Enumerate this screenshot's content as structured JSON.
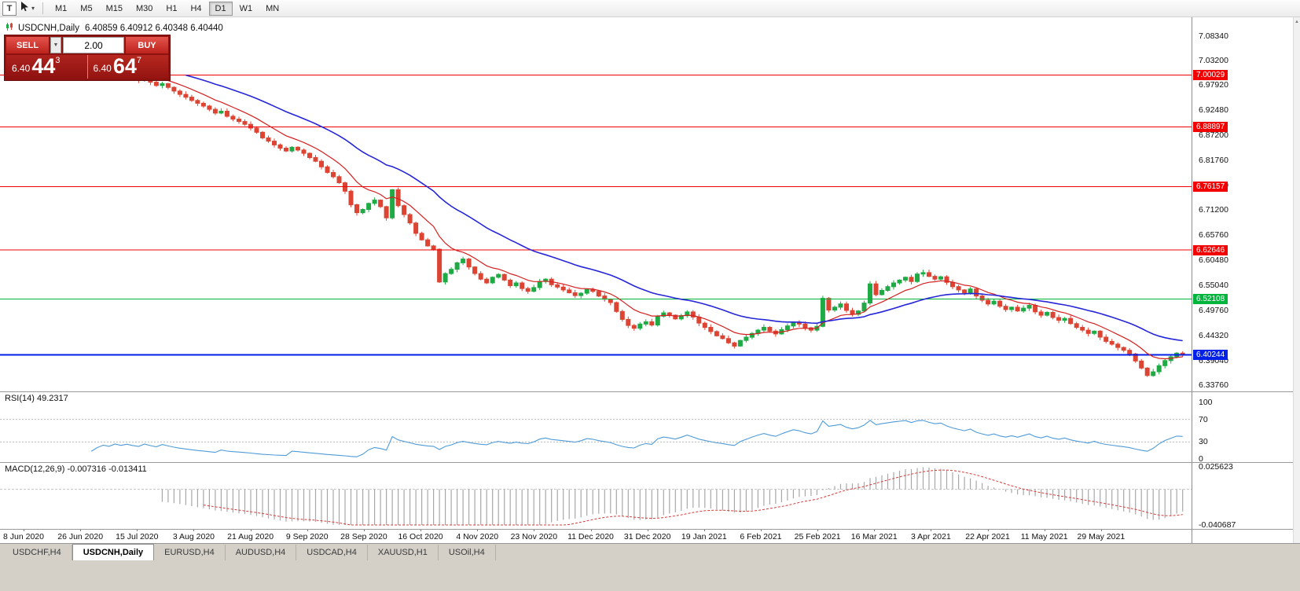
{
  "toolbar": {
    "text_tool": "T",
    "timeframes": [
      {
        "label": "M1",
        "active": false
      },
      {
        "label": "M5",
        "active": false
      },
      {
        "label": "M15",
        "active": false
      },
      {
        "label": "M30",
        "active": false
      },
      {
        "label": "H1",
        "active": false
      },
      {
        "label": "H4",
        "active": false
      },
      {
        "label": "D1",
        "active": true
      },
      {
        "label": "W1",
        "active": false
      },
      {
        "label": "MN",
        "active": false
      }
    ]
  },
  "chart_header": {
    "symbol": "USDCNH,Daily",
    "ohlc": "6.40859 6.40912 6.40348 6.40440"
  },
  "trade_panel": {
    "sell_label": "SELL",
    "buy_label": "BUY",
    "volume": "2.00",
    "sell_price": {
      "prefix": "6.40",
      "big": "44",
      "sup": "3"
    },
    "buy_price": {
      "prefix": "6.40",
      "big": "64",
      "sup": "7"
    }
  },
  "indicators": {
    "rsi_label": "RSI(14) 49.2317",
    "macd_label": "MACD(12,26,9) -0.007316 -0.013411"
  },
  "tabs": [
    {
      "label": "USDCHF,H4",
      "active": false
    },
    {
      "label": "USDCNH,Daily",
      "active": true
    },
    {
      "label": "EURUSD,H4",
      "active": false
    },
    {
      "label": "AUDUSD,H4",
      "active": false
    },
    {
      "label": "USDCAD,H4",
      "active": false
    },
    {
      "label": "XAUUSD,H1",
      "active": false
    },
    {
      "label": "USOil,H4",
      "active": false
    }
  ],
  "chart_data": {
    "type": "candlestick",
    "symbol": "USDCNH",
    "timeframe": "Daily",
    "ohlc_display": {
      "open": "6.40859",
      "high": "6.40912",
      "low": "6.40348",
      "close": "6.40440"
    },
    "price_axis_ticks": [
      "7.08340",
      "7.03200",
      "6.97920",
      "6.92480",
      "6.87200",
      "6.81760",
      "6.76480",
      "6.71200",
      "6.65760",
      "6.60480",
      "6.55040",
      "6.49760",
      "6.44320",
      "6.39040",
      "6.33760"
    ],
    "hlines": [
      {
        "price": 7.00029,
        "label": "7.00029",
        "color": "#f20000",
        "width": 1
      },
      {
        "price": 6.88897,
        "label": "6.88897",
        "color": "#f20000",
        "width": 1
      },
      {
        "price": 6.76157,
        "label": "6.76157",
        "color": "#f20000",
        "width": 1
      },
      {
        "price": 6.62646,
        "label": "6.62646",
        "color": "#f20000",
        "width": 1
      },
      {
        "price": 6.52108,
        "label": "6.52108",
        "color": "#00b43c",
        "width": 1
      },
      {
        "price": 6.40244,
        "label": "6.40244",
        "color": "#0020e8",
        "width": 2
      }
    ],
    "date_axis": [
      "8 Jun 2020",
      "26 Jun 2020",
      "15 Jul 2020",
      "3 Aug 2020",
      "21 Aug 2020",
      "9 Sep 2020",
      "28 Sep 2020",
      "16 Oct 2020",
      "4 Nov 2020",
      "23 Nov 2020",
      "11 Dec 2020",
      "31 Dec 2020",
      "19 Jan 2021",
      "6 Feb 2021",
      "25 Feb 2021",
      "16 Mar 2021",
      "3 Apr 2021",
      "22 Apr 2021",
      "11 May 2021",
      "29 May 2021"
    ],
    "rsi": {
      "period": 14,
      "value": 49.2317,
      "axis_ticks": [
        "100",
        "70",
        "30",
        "0"
      ],
      "levels": [
        70,
        30
      ]
    },
    "macd": {
      "params": [
        12,
        26,
        9
      ],
      "values": [
        -0.007316,
        -0.013411
      ],
      "axis_top": "0.025623",
      "axis_bottom": "-0.040687"
    },
    "overlays": [
      {
        "name": "fast-ma-line",
        "color": "#d42020",
        "period": 10
      },
      {
        "name": "slow-ma-line",
        "color": "#2626d8",
        "period": 30
      }
    ],
    "candle_colors": {
      "up": "#1faa45",
      "down": "#dd4433"
    },
    "closes": [
      7.056,
      7.048,
      7.051,
      7.042,
      7.037,
      7.039,
      7.03,
      7.024,
      7.027,
      7.018,
      7.012,
      7.006,
      7.009,
      7.001,
      6.998,
      7.004,
      7.008,
      7.002,
      7.006,
      6.999,
      7.001,
      6.994,
      6.989,
      6.993,
      6.985,
      6.978,
      6.982,
      6.974,
      6.966,
      6.959,
      6.953,
      6.946,
      6.94,
      6.934,
      6.927,
      6.919,
      6.923,
      6.912,
      6.906,
      6.901,
      6.895,
      6.887,
      6.878,
      6.866,
      6.859,
      6.851,
      6.844,
      6.838,
      6.846,
      6.84,
      6.833,
      6.824,
      6.816,
      6.804,
      6.792,
      6.783,
      6.77,
      6.752,
      6.723,
      6.706,
      6.713,
      6.726,
      6.733,
      6.719,
      6.695,
      6.755,
      6.721,
      6.702,
      6.684,
      6.662,
      6.648,
      6.635,
      6.628,
      6.558,
      6.576,
      6.585,
      6.599,
      6.607,
      6.59,
      6.576,
      6.564,
      6.556,
      6.568,
      6.574,
      6.562,
      6.55,
      6.556,
      6.544,
      6.538,
      6.546,
      6.559,
      6.564,
      6.552,
      6.547,
      6.541,
      6.535,
      6.529,
      6.534,
      6.542,
      6.538,
      6.528,
      6.521,
      6.514,
      6.495,
      6.478,
      6.465,
      6.459,
      6.468,
      6.473,
      6.466,
      6.485,
      6.492,
      6.487,
      6.479,
      6.486,
      6.494,
      6.483,
      6.47,
      6.461,
      6.452,
      6.443,
      6.437,
      6.428,
      6.421,
      6.433,
      6.44,
      6.448,
      6.455,
      6.461,
      6.453,
      6.447,
      6.456,
      6.464,
      6.472,
      6.468,
      6.46,
      6.455,
      6.463,
      6.523,
      6.498,
      6.504,
      6.511,
      6.497,
      6.489,
      6.496,
      6.513,
      6.554,
      6.531,
      6.54,
      6.548,
      6.556,
      6.562,
      6.568,
      6.559,
      6.575,
      6.578,
      6.57,
      6.564,
      6.569,
      6.557,
      6.548,
      6.541,
      6.535,
      6.543,
      6.528,
      6.519,
      6.511,
      6.517,
      6.506,
      6.499,
      6.504,
      6.496,
      6.502,
      6.508,
      6.494,
      6.487,
      6.493,
      6.482,
      6.476,
      6.48,
      6.469,
      6.461,
      6.455,
      6.448,
      6.453,
      6.44,
      6.431,
      6.425,
      6.418,
      6.412,
      6.404,
      6.389,
      6.374,
      6.358,
      6.366,
      6.379,
      6.39,
      6.398,
      6.406,
      6.4044
    ]
  }
}
